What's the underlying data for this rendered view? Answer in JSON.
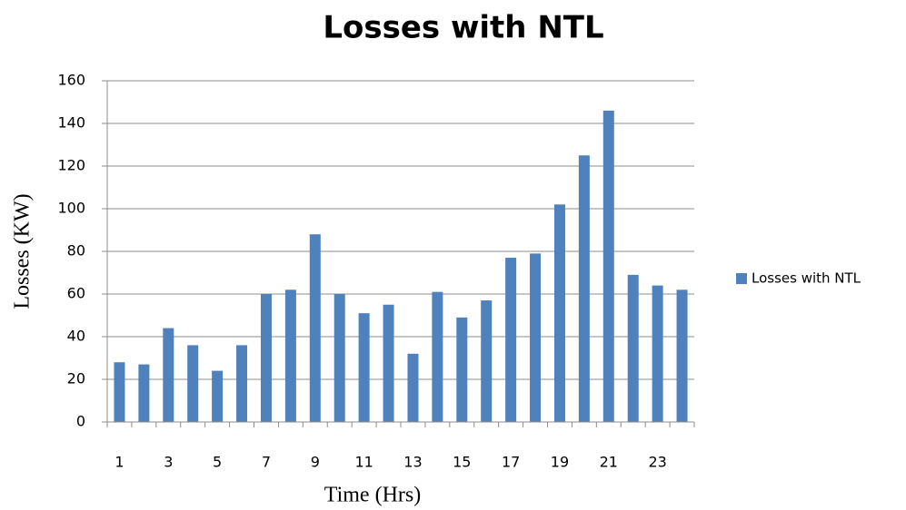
{
  "chart_data": {
    "type": "bar",
    "title": "Losses with NTL",
    "x_label": "Time (Hrs)",
    "y_label": "Losses (KW)",
    "categories": [
      1,
      null,
      3,
      null,
      5,
      null,
      7,
      null,
      9,
      null,
      11,
      null,
      13,
      null,
      15,
      null,
      17,
      null,
      19,
      null,
      21,
      null,
      23,
      null
    ],
    "series": [
      {
        "name": "Losses with NTL",
        "color": "#4f81bd",
        "values": [
          28,
          27,
          44,
          36,
          24,
          36,
          60,
          62,
          88,
          60,
          51,
          55,
          32,
          61,
          49,
          57,
          77,
          79,
          102,
          125,
          146,
          69,
          64,
          62
        ]
      }
    ],
    "ylim": [
      0,
      160
    ],
    "yticks": [
      0,
      20,
      40,
      60,
      80,
      100,
      120,
      140,
      160
    ],
    "grid": true,
    "legend": "right"
  }
}
